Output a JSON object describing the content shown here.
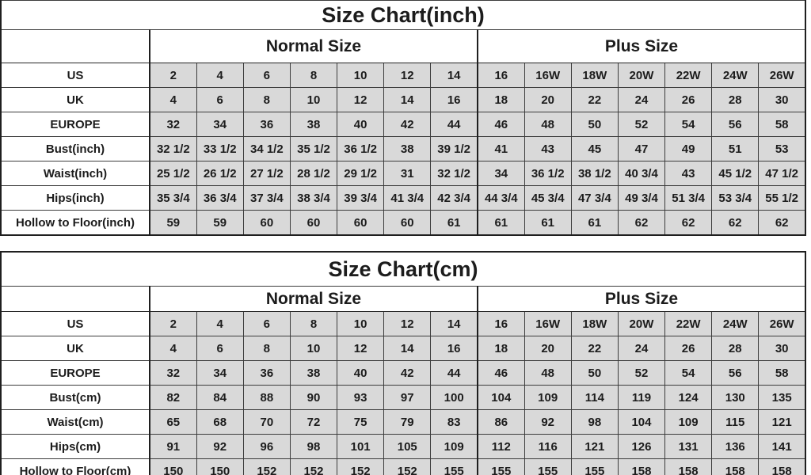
{
  "colors": {
    "cell_fill": "#d9d9d9",
    "background": "#ffffff",
    "text": "#1c1c1c",
    "grid_line": "#3c3c3c"
  },
  "tables": [
    {
      "id": "inch",
      "title": "Size Chart(inch)",
      "group_headers": {
        "normal": "Normal Size",
        "plus": "Plus Size"
      },
      "rows": [
        {
          "label": "US",
          "values": [
            "2",
            "4",
            "6",
            "8",
            "10",
            "12",
            "14",
            "16",
            "16W",
            "18W",
            "20W",
            "22W",
            "24W",
            "26W"
          ]
        },
        {
          "label": "UK",
          "values": [
            "4",
            "6",
            "8",
            "10",
            "12",
            "14",
            "16",
            "18",
            "20",
            "22",
            "24",
            "26",
            "28",
            "30"
          ]
        },
        {
          "label": "EUROPE",
          "values": [
            "32",
            "34",
            "36",
            "38",
            "40",
            "42",
            "44",
            "46",
            "48",
            "50",
            "52",
            "54",
            "56",
            "58"
          ]
        },
        {
          "label": "Bust(inch)",
          "values": [
            "32 1/2",
            "33 1/2",
            "34 1/2",
            "35 1/2",
            "36 1/2",
            "38",
            "39 1/2",
            "41",
            "43",
            "45",
            "47",
            "49",
            "51",
            "53"
          ]
        },
        {
          "label": "Waist(inch)",
          "values": [
            "25 1/2",
            "26 1/2",
            "27 1/2",
            "28 1/2",
            "29 1/2",
            "31",
            "32 1/2",
            "34",
            "36 1/2",
            "38 1/2",
            "40 3/4",
            "43",
            "45 1/2",
            "47 1/2"
          ]
        },
        {
          "label": "Hips(inch)",
          "values": [
            "35 3/4",
            "36 3/4",
            "37 3/4",
            "38 3/4",
            "39 3/4",
            "41 3/4",
            "42 3/4",
            "44 3/4",
            "45 3/4",
            "47 3/4",
            "49 3/4",
            "51 3/4",
            "53 3/4",
            "55 1/2"
          ]
        },
        {
          "label": "Hollow to Floor(inch)",
          "values": [
            "59",
            "59",
            "60",
            "60",
            "60",
            "60",
            "61",
            "61",
            "61",
            "61",
            "62",
            "62",
            "62",
            "62"
          ]
        }
      ]
    },
    {
      "id": "cm",
      "title": "Size Chart(cm)",
      "group_headers": {
        "normal": "Normal Size",
        "plus": "Plus Size"
      },
      "rows": [
        {
          "label": "US",
          "values": [
            "2",
            "4",
            "6",
            "8",
            "10",
            "12",
            "14",
            "16",
            "16W",
            "18W",
            "20W",
            "22W",
            "24W",
            "26W"
          ]
        },
        {
          "label": "UK",
          "values": [
            "4",
            "6",
            "8",
            "10",
            "12",
            "14",
            "16",
            "18",
            "20",
            "22",
            "24",
            "26",
            "28",
            "30"
          ]
        },
        {
          "label": "EUROPE",
          "values": [
            "32",
            "34",
            "36",
            "38",
            "40",
            "42",
            "44",
            "46",
            "48",
            "50",
            "52",
            "54",
            "56",
            "58"
          ]
        },
        {
          "label": "Bust(cm)",
          "values": [
            "82",
            "84",
            "88",
            "90",
            "93",
            "97",
            "100",
            "104",
            "109",
            "114",
            "119",
            "124",
            "130",
            "135"
          ]
        },
        {
          "label": "Waist(cm)",
          "values": [
            "65",
            "68",
            "70",
            "72",
            "75",
            "79",
            "83",
            "86",
            "92",
            "98",
            "104",
            "109",
            "115",
            "121"
          ]
        },
        {
          "label": "Hips(cm)",
          "values": [
            "91",
            "92",
            "96",
            "98",
            "101",
            "105",
            "109",
            "112",
            "116",
            "121",
            "126",
            "131",
            "136",
            "141"
          ]
        },
        {
          "label": "Hollow to Floor(cm)",
          "values": [
            "150",
            "150",
            "152",
            "152",
            "152",
            "152",
            "155",
            "155",
            "155",
            "155",
            "158",
            "158",
            "158",
            "158"
          ]
        }
      ]
    }
  ]
}
